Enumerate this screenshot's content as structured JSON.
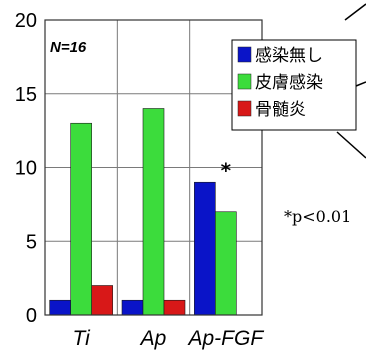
{
  "chart_data": {
    "type": "bar",
    "categories": [
      "Ti",
      "Ap",
      "Ap-FGF"
    ],
    "series": [
      {
        "name": "感染無し",
        "color": "#0a14c8",
        "values": [
          1,
          1,
          9
        ]
      },
      {
        "name": "皮膚感染",
        "color": "#3cdc3c",
        "values": [
          13,
          14,
          7
        ]
      },
      {
        "name": "骨髄炎",
        "color": "#d81818",
        "values": [
          2,
          1,
          0
        ]
      }
    ],
    "ylim": [
      0,
      20
    ],
    "yticks": [
      "0",
      "5",
      "10",
      "15",
      "20"
    ],
    "grid": true,
    "legend": "top-right",
    "annotations": {
      "n_label": "N=16",
      "significance_marker": "*",
      "significance_category": "Ap-FGF",
      "p_value": "*p<0.01"
    }
  }
}
